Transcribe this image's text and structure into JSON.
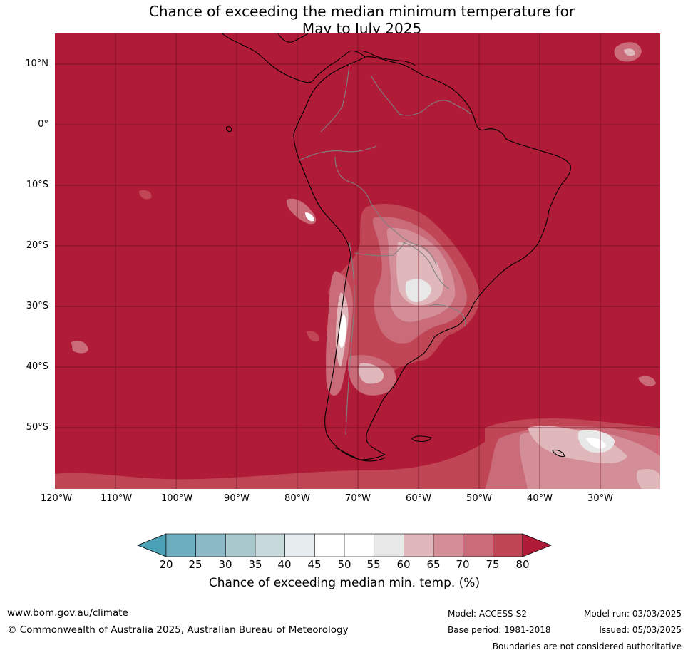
{
  "title": {
    "line1": "Chance of exceeding the median minimum temperature for",
    "line2": "May to July 2025"
  },
  "map": {
    "lat_labels": [
      "10°N",
      "0°",
      "10°S",
      "20°S",
      "30°S",
      "40°S",
      "50°S"
    ],
    "lon_labels": [
      "120°W",
      "110°W",
      "100°W",
      "90°W",
      "80°W",
      "70°W",
      "60°W",
      "50°W",
      "40°W",
      "30°W"
    ],
    "background_color": "#b01b37",
    "gridline_color": "#6b1020",
    "coastline_color": "#000000",
    "border_color": "#808080"
  },
  "legend": {
    "ticks": [
      "20",
      "25",
      "30",
      "35",
      "40",
      "45",
      "50",
      "55",
      "60",
      "65",
      "70",
      "75",
      "80"
    ],
    "colors": [
      "#4aa0b4",
      "#6daebf",
      "#8cbac6",
      "#a9c8ce",
      "#c8d9dc",
      "#e8eeef",
      "#ffffff",
      "#ffffff",
      "#e8e8e8",
      "#e0b8bc",
      "#d48e98",
      "#c96b78",
      "#c04656",
      "#b01b37"
    ],
    "label": "Chance of exceeding median min. temp. (%)"
  },
  "footer": {
    "website": "www.bom.gov.au/climate",
    "copyright": "© Commonwealth of Australia 2025, Australian Bureau of Meteorology",
    "model": "Model: ACCESS-S2",
    "base_period": "Base period: 1981-2018",
    "model_run": "Model run: 03/03/2025",
    "issued": "Issued: 05/03/2025",
    "disclaimer": "Boundaries are not considered authoritative"
  }
}
